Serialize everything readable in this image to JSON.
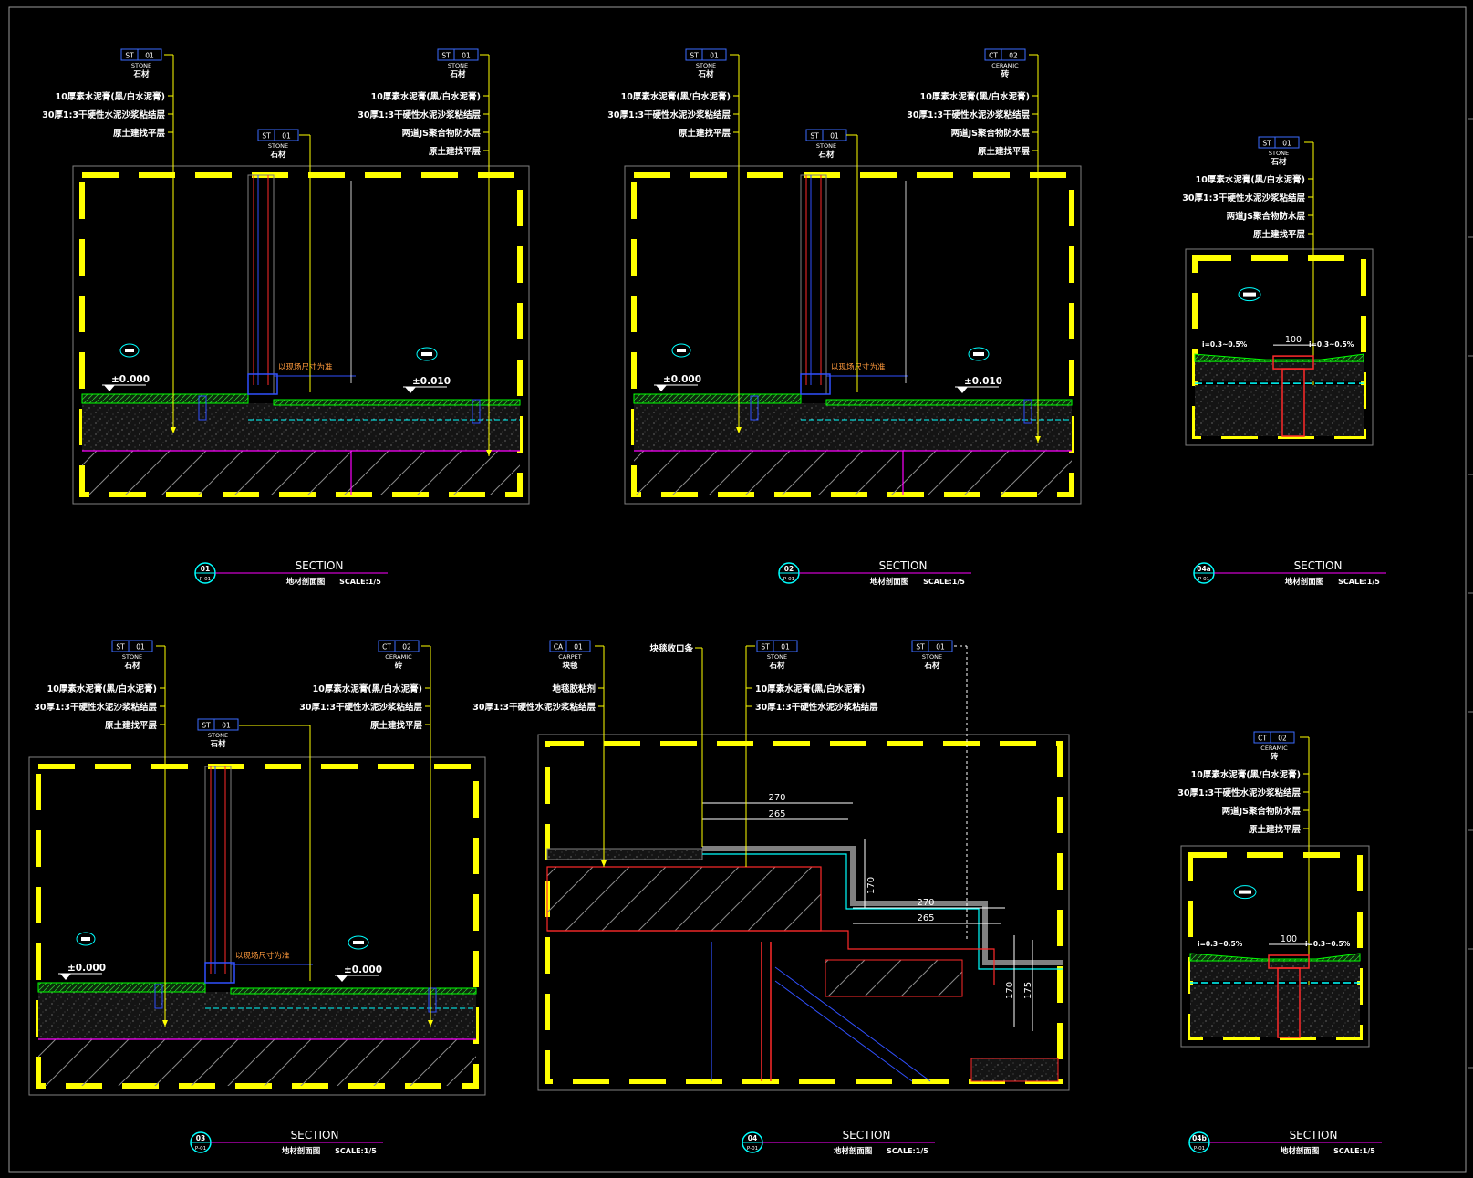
{
  "colors": {
    "background": "#000000",
    "frame": "#ffff00",
    "leader": "#ffff00",
    "label": "#ffffff",
    "tag_border": "#3b6cff",
    "magenta": "#ff00ff",
    "green": "#00ff00",
    "red": "#ff2a2a",
    "cyan": "#00ffff",
    "blue": "#3050ff",
    "orange": "#ff9a3c",
    "gray": "#808080"
  },
  "materials": {
    "stone": {
      "code": "ST",
      "num": "01",
      "en": "STONE",
      "cn": "石材"
    },
    "ceramic": {
      "code": "CT",
      "num": "02",
      "en": "CERAMIC",
      "cn": "砖"
    },
    "carpet": {
      "code": "CA",
      "num": "01",
      "en": "CARPET",
      "cn": "块毯"
    }
  },
  "layers": {
    "l1": "10厚素水泥膏(黑/白水泥膏)",
    "l2": "30厚1:3干硬性水泥沙浆粘结层",
    "l3": "两道JS聚合物防水层",
    "l4": "原土建找平层",
    "carpet_trim": "块毯收口条",
    "carpet_glue": "地毯胶粘剂"
  },
  "misc": {
    "elev_0": "±0.000",
    "elev_10": "±0.010",
    "site_size": "以现场尺寸为准",
    "slope": "i=0.3~0.5%",
    "drain_width": "100"
  },
  "sections": [
    {
      "num": "01",
      "ref": "P-01",
      "title": "SECTION",
      "sub": "地材剖面图",
      "scale": "SCALE:1/5"
    },
    {
      "num": "02",
      "ref": "P-01",
      "title": "SECTION",
      "sub": "地材剖面图",
      "scale": "SCALE:1/5"
    },
    {
      "num": "04a",
      "ref": "P-01",
      "title": "SECTION",
      "sub": "地材剖面图",
      "scale": "SCALE:1/5"
    },
    {
      "num": "03",
      "ref": "P-01",
      "title": "SECTION",
      "sub": "地材剖面图",
      "scale": "SCALE:1/5"
    },
    {
      "num": "04",
      "ref": "P-01",
      "title": "SECTION",
      "sub": "地材剖面图",
      "scale": "SCALE:1/5"
    },
    {
      "num": "04b",
      "ref": "P-01",
      "title": "SECTION",
      "sub": "地材剖面图",
      "scale": "SCALE:1/5"
    }
  ],
  "stair": {
    "d270a": "270",
    "d265a": "265",
    "d170a": "170",
    "d270b": "270",
    "d265b": "265",
    "d170b": "170",
    "d175": "175"
  }
}
